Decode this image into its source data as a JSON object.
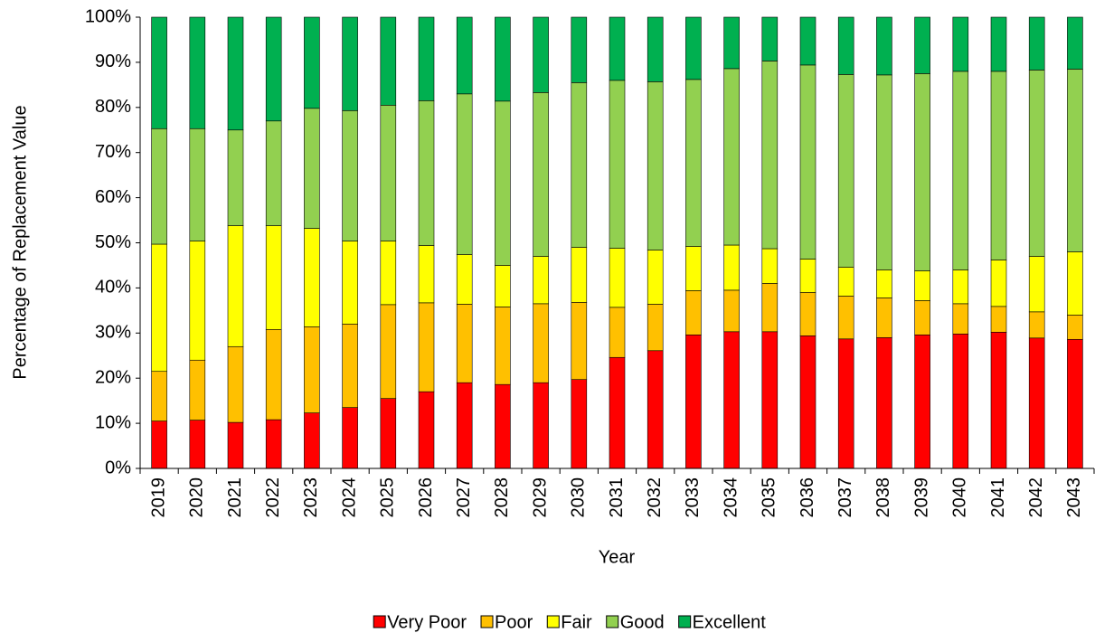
{
  "chart_data": {
    "type": "stacked_bar",
    "x_label": "Year",
    "y_label": "Percentage of Replacement Value",
    "categories": [
      "2019",
      "2020",
      "2021",
      "2022",
      "2023",
      "2024",
      "2025",
      "2026",
      "2027",
      "2028",
      "2029",
      "2030",
      "2031",
      "2032",
      "2033",
      "2034",
      "2035",
      "2036",
      "2037",
      "2038",
      "2039",
      "2040",
      "2041",
      "2042",
      "2043"
    ],
    "series": [
      {
        "name": "Very Poor",
        "color": "#ff0000",
        "values": [
          10.5,
          10.7,
          10.2,
          10.8,
          12.3,
          13.5,
          15.5,
          17.0,
          19.0,
          18.6,
          19.0,
          19.7,
          24.6,
          26.1,
          29.6,
          30.3,
          30.3,
          29.4,
          28.7,
          29.0,
          29.6,
          29.8,
          30.2,
          28.9,
          28.6
        ]
      },
      {
        "name": "Poor",
        "color": "#ffc000",
        "values": [
          11.0,
          13.3,
          16.8,
          20.0,
          19.1,
          18.5,
          20.8,
          19.7,
          17.4,
          17.2,
          17.5,
          17.1,
          11.1,
          10.3,
          9.8,
          9.2,
          10.7,
          9.6,
          9.5,
          8.8,
          7.6,
          6.7,
          5.7,
          5.8,
          5.4
        ]
      },
      {
        "name": "Fair",
        "color": "#ffff00",
        "values": [
          28.2,
          26.4,
          26.8,
          23.0,
          21.8,
          18.4,
          14.1,
          12.7,
          11.0,
          9.2,
          10.5,
          12.2,
          13.1,
          12.0,
          9.8,
          10.0,
          7.7,
          7.4,
          6.4,
          6.2,
          6.6,
          7.5,
          10.3,
          12.3,
          14.0
        ]
      },
      {
        "name": "Good",
        "color": "#92d050",
        "values": [
          25.6,
          24.9,
          21.2,
          23.2,
          26.6,
          28.9,
          30.1,
          32.1,
          35.6,
          36.4,
          36.3,
          36.5,
          37.2,
          37.3,
          37.0,
          39.1,
          41.6,
          43.0,
          42.7,
          43.2,
          43.7,
          44.0,
          41.8,
          41.3,
          40.5
        ]
      },
      {
        "name": "Excellent",
        "color": "#00b050",
        "values": [
          24.7,
          24.7,
          25.0,
          23.0,
          20.2,
          20.7,
          19.5,
          18.5,
          17.0,
          18.6,
          16.7,
          14.5,
          14.0,
          14.3,
          13.8,
          11.4,
          9.7,
          10.6,
          12.7,
          12.8,
          12.5,
          12.0,
          12.0,
          11.7,
          11.5
        ]
      }
    ],
    "ylim": [
      0,
      100
    ],
    "yticks": [
      {
        "value": 0,
        "label": "0%"
      },
      {
        "value": 10,
        "label": "10%"
      },
      {
        "value": 20,
        "label": "20%"
      },
      {
        "value": 30,
        "label": "30%"
      },
      {
        "value": 40,
        "label": "40%"
      },
      {
        "value": 50,
        "label": "50%"
      },
      {
        "value": 60,
        "label": "60%"
      },
      {
        "value": 70,
        "label": "70%"
      },
      {
        "value": 80,
        "label": "80%"
      },
      {
        "value": 90,
        "label": "90%"
      },
      {
        "value": 100,
        "label": "100%"
      }
    ],
    "grid": false,
    "legend": "bottom"
  }
}
